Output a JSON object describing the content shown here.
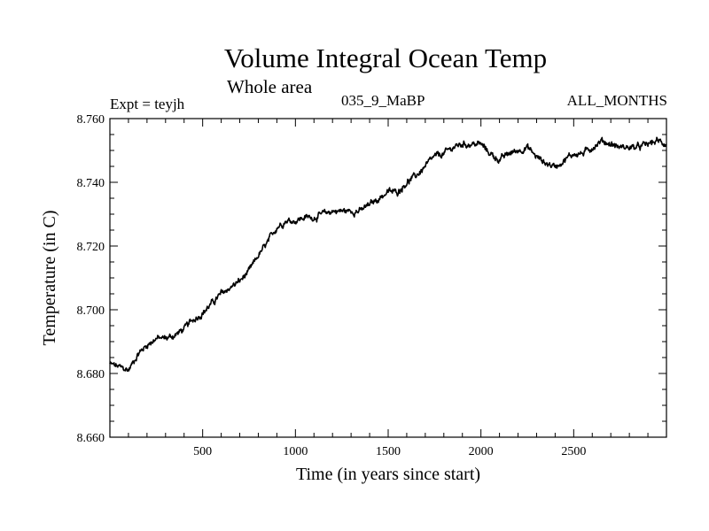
{
  "chart_data": {
    "type": "line",
    "title": "Volume Integral Ocean Temp",
    "subtitle": "Whole area",
    "annotations": {
      "experiment": "Expt = teyjh",
      "run": "035_9_MaBP",
      "period": "ALL_MONTHS"
    },
    "xlabel": "Time (in years since start)",
    "ylabel": "Temperature (in C)",
    "xlim": [
      0,
      3000
    ],
    "ylim": [
      8.66,
      8.76
    ],
    "x_ticks": [
      500,
      1000,
      1500,
      2000,
      2500
    ],
    "y_ticks": [
      "8.660",
      "8.680",
      "8.700",
      "8.720",
      "8.740",
      "8.760"
    ],
    "grid": false,
    "series": [
      {
        "name": "Volume integral ocean temperature",
        "color": "#000000",
        "x": [
          0,
          50,
          100,
          150,
          200,
          250,
          300,
          350,
          400,
          450,
          500,
          550,
          600,
          650,
          700,
          750,
          800,
          850,
          900,
          950,
          1000,
          1050,
          1100,
          1150,
          1200,
          1250,
          1300,
          1350,
          1400,
          1450,
          1500,
          1550,
          1600,
          1650,
          1700,
          1750,
          1800,
          1850,
          1900,
          1950,
          2000,
          2050,
          2100,
          2150,
          2200,
          2250,
          2300,
          2350,
          2400,
          2450,
          2500,
          2550,
          2600,
          2650,
          2700,
          2750,
          2800,
          2850,
          2900,
          2950,
          3000
        ],
        "values": [
          8.683,
          8.682,
          8.681,
          8.686,
          8.689,
          8.691,
          8.691,
          8.692,
          8.694,
          8.697,
          8.699,
          8.702,
          8.705,
          8.707,
          8.709,
          8.712,
          8.717,
          8.721,
          8.726,
          8.728,
          8.728,
          8.729,
          8.729,
          8.73,
          8.731,
          8.731,
          8.731,
          8.731,
          8.733,
          8.735,
          8.737,
          8.737,
          8.74,
          8.742,
          8.745,
          8.748,
          8.749,
          8.751,
          8.752,
          8.752,
          8.752,
          8.749,
          8.747,
          8.749,
          8.75,
          8.751,
          8.748,
          8.746,
          8.745,
          8.747,
          8.749,
          8.749,
          8.751,
          8.753,
          8.752,
          8.751,
          8.751,
          8.751,
          8.752,
          8.753,
          8.752
        ]
      }
    ]
  }
}
